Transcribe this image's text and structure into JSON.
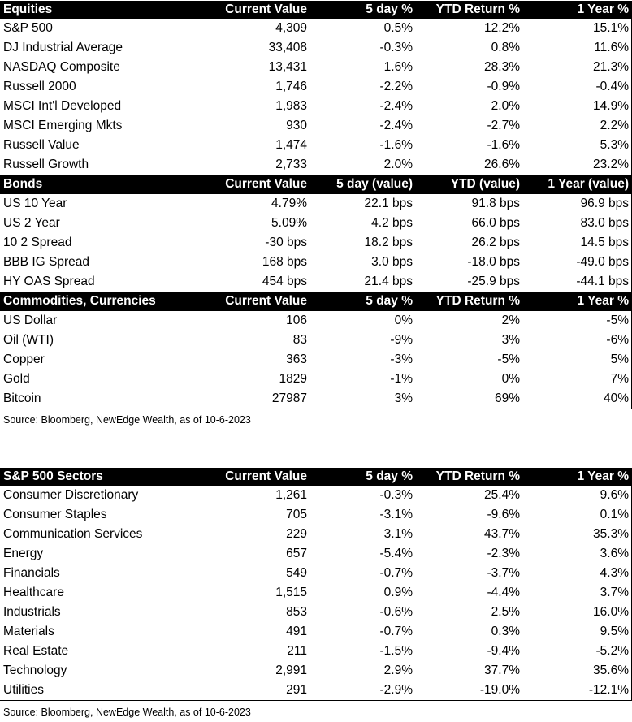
{
  "table1": {
    "sections": [
      {
        "header": [
          "Equities",
          "Current Value",
          "5 day %",
          "YTD Return %",
          "1 Year %"
        ],
        "rows": [
          [
            "S&P 500",
            "4,309",
            "0.5%",
            "12.2%",
            "15.1%"
          ],
          [
            "DJ Industrial Average",
            "33,408",
            "-0.3%",
            "0.8%",
            "11.6%"
          ],
          [
            "NASDAQ Composite",
            "13,431",
            "1.6%",
            "28.3%",
            "21.3%"
          ],
          [
            "Russell 2000",
            "1,746",
            "-2.2%",
            "-0.9%",
            "-0.4%"
          ],
          [
            "MSCI Int'l Developed",
            "1,983",
            "-2.4%",
            "2.0%",
            "14.9%"
          ],
          [
            "MSCI Emerging Mkts",
            "930",
            "-2.4%",
            "-2.7%",
            "2.2%"
          ],
          [
            "Russell Value",
            "1,474",
            "-1.6%",
            "-1.6%",
            "5.3%"
          ],
          [
            "Russell Growth",
            "2,733",
            "2.0%",
            "26.6%",
            "23.2%"
          ]
        ]
      },
      {
        "header": [
          "Bonds",
          "Current Value",
          "5 day (value)",
          "YTD (value)",
          "1 Year (value)"
        ],
        "rows": [
          [
            "US 10 Year",
            "4.79%",
            "22.1 bps",
            "91.8 bps",
            "96.9 bps"
          ],
          [
            "US 2 Year",
            "5.09%",
            "4.2 bps",
            "66.0 bps",
            "83.0 bps"
          ],
          [
            "10 2 Spread",
            "-30 bps",
            "18.2 bps",
            "26.2 bps",
            "14.5 bps"
          ],
          [
            "BBB IG Spread",
            "168 bps",
            "3.0 bps",
            "-18.0 bps",
            "-49.0 bps"
          ],
          [
            "HY OAS Spread",
            "454 bps",
            "21.4 bps",
            "-25.9 bps",
            "-44.1 bps"
          ]
        ]
      },
      {
        "header": [
          "Commodities, Currencies",
          "Current Value",
          "5 day %",
          "YTD Return %",
          "1 Year %"
        ],
        "rows": [
          [
            "US Dollar",
            "106",
            "0%",
            "2%",
            "-5%"
          ],
          [
            "Oil (WTI)",
            "83",
            "-9%",
            "3%",
            "-6%"
          ],
          [
            "Copper",
            "363",
            "-3%",
            "-5%",
            "5%"
          ],
          [
            "Gold",
            "1829",
            "-1%",
            "0%",
            "7%"
          ],
          [
            "Bitcoin",
            "27987",
            "3%",
            "69%",
            "40%"
          ]
        ]
      }
    ],
    "source": "Source: Bloomberg, NewEdge Wealth, as of 10-6-2023"
  },
  "table2": {
    "sections": [
      {
        "header": [
          "S&P 500 Sectors",
          "Current Value",
          "5 day %",
          "YTD Return %",
          "1 Year %"
        ],
        "rows": [
          [
            "Consumer Discretionary",
            "1,261",
            "-0.3%",
            "25.4%",
            "9.6%"
          ],
          [
            "Consumer Staples",
            "705",
            "-3.1%",
            "-9.6%",
            "0.1%"
          ],
          [
            "Communication Services",
            "229",
            "3.1%",
            "43.7%",
            "35.3%"
          ],
          [
            "Energy",
            "657",
            "-5.4%",
            "-2.3%",
            "3.6%"
          ],
          [
            "Financials",
            "549",
            "-0.7%",
            "-3.7%",
            "4.3%"
          ],
          [
            "Healthcare",
            "1,515",
            "0.9%",
            "-4.4%",
            "3.7%"
          ],
          [
            "Industrials",
            "853",
            "-0.6%",
            "2.5%",
            "16.0%"
          ],
          [
            "Materials",
            "491",
            "-0.7%",
            "0.3%",
            "9.5%"
          ],
          [
            "Real Estate",
            "211",
            "-1.5%",
            "-9.4%",
            "-5.2%"
          ],
          [
            "Technology",
            "2,991",
            "2.9%",
            "37.7%",
            "35.6%"
          ],
          [
            "Utilities",
            "291",
            "-2.9%",
            "-19.0%",
            "-12.1%"
          ]
        ]
      }
    ],
    "source": "Source: Bloomberg, NewEdge Wealth, as of 10-6-2023"
  }
}
